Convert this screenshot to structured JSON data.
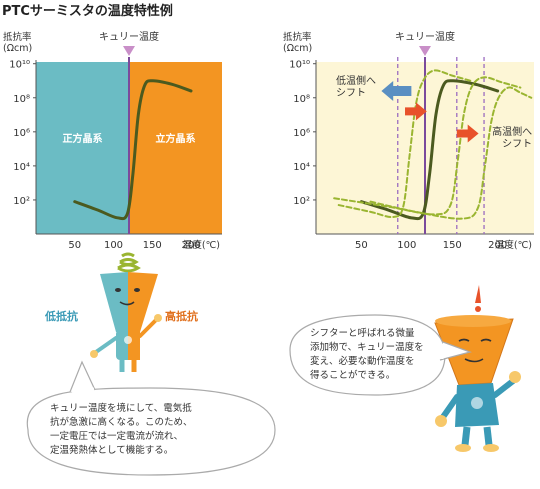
{
  "title": "PTCサーミスタの温度特性例",
  "colors": {
    "left_region": "#6bbcc4",
    "right_region": "#f39522",
    "curie_line": "#7b4a9c",
    "curie_arrow": "#c98fc8",
    "curve": "#4b5a1f",
    "curve_shifted": "#9ab531",
    "chart2_bg": "#fdf6d6",
    "shift_left_arrow": "#5a8fc2",
    "shift_right_arrow": "#e8522a",
    "low_resistance": "#3a9ab6",
    "high_resistance": "#e0701e"
  },
  "chart_data": [
    {
      "type": "line",
      "ylabel": "抵抗率",
      "yunit": "(Ωcm)",
      "xlabel": "温度(℃)",
      "x_ticks": [
        "50",
        "100",
        "150",
        "200"
      ],
      "y_ticks": [
        "10²",
        "10⁴",
        "10⁶",
        "10⁸",
        "10¹⁰"
      ],
      "y_tick_log_values": [
        2,
        4,
        6,
        8,
        10
      ],
      "xlim": [
        0,
        240
      ],
      "ylim_log": [
        0,
        10.1
      ],
      "curie_label": "キュリー温度",
      "curie_temp": 120,
      "regions": [
        {
          "label": "正方晶系",
          "from": 0,
          "to": 120
        },
        {
          "label": "立方晶系",
          "from": 120,
          "to": 240
        }
      ],
      "series": [
        {
          "x": [
            50,
            80,
            105,
            118,
            125,
            132,
            140,
            150,
            175,
            200
          ],
          "y": [
            1.9,
            1.4,
            0.95,
            1.2,
            3.5,
            7.0,
            8.7,
            9.0,
            8.8,
            8.4
          ]
        }
      ]
    },
    {
      "type": "line",
      "ylabel": "抵抗率",
      "yunit": "(Ωcm)",
      "xlabel": "温度(℃)",
      "x_ticks": [
        "50",
        "100",
        "150",
        "200"
      ],
      "y_ticks": [
        "10²",
        "10⁴",
        "10⁶",
        "10⁸",
        "10¹⁰"
      ],
      "y_tick_log_values": [
        2,
        4,
        6,
        8,
        10
      ],
      "xlim": [
        0,
        240
      ],
      "ylim_log": [
        0,
        10.1
      ],
      "curie_label": "キュリー温度",
      "curie_temp": 120,
      "shift_markers": [
        90,
        155,
        185
      ],
      "annotations": [
        {
          "text_lines": [
            "低温側へ",
            "シフト"
          ],
          "where": "upper-left"
        },
        {
          "text_lines": [
            "高温側へ",
            "シフト"
          ],
          "where": "right"
        }
      ],
      "series": [
        {
          "style": "solid",
          "x": [
            50,
            80,
            105,
            118,
            125,
            132,
            140,
            150,
            175,
            200
          ],
          "y": [
            1.9,
            1.4,
            0.95,
            1.2,
            3.5,
            7.0,
            8.7,
            9.0,
            8.8,
            8.4
          ]
        },
        {
          "style": "dashed",
          "x": [
            25,
            60,
            85,
            96,
            103,
            110,
            118,
            130,
            150,
            170
          ],
          "y": [
            1.7,
            1.3,
            1.0,
            1.6,
            4.6,
            7.6,
            9.0,
            9.6,
            9.3,
            9.0
          ]
        },
        {
          "style": "dashed",
          "x": [
            20,
            80,
            130,
            148,
            156,
            163,
            172,
            185,
            205,
            225
          ],
          "y": [
            2.1,
            1.6,
            1.15,
            1.7,
            4.3,
            7.1,
            8.7,
            9.2,
            8.9,
            8.6
          ]
        },
        {
          "style": "dashed",
          "x": [
            60,
            110,
            160,
            178,
            186,
            193,
            201,
            212,
            225,
            237
          ],
          "y": [
            1.9,
            1.3,
            0.9,
            1.5,
            4.0,
            6.6,
            8.0,
            8.6,
            8.3,
            8.0
          ]
        }
      ]
    }
  ],
  "labels": {
    "low_resistance": "低抵抗",
    "high_resistance": "高抵抗",
    "bubble_left": [
      "キュリー温度を境にして、電気抵",
      "抗が急激に高くなる。このため、",
      "一定電圧では一定電流が流れ、",
      "定温発熱体として機能する。"
    ],
    "bubble_right": [
      "シフターと呼ばれる微量",
      "添加物で、キュリー温度を",
      "変え、必要な動作温度を",
      "得ることができる。"
    ]
  }
}
